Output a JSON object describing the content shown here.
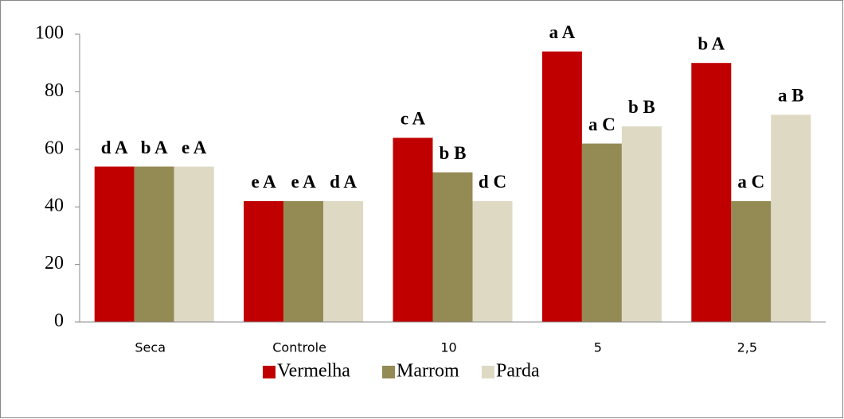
{
  "chart_data": {
    "type": "bar",
    "categories": [
      "Seca",
      "Controle",
      "10",
      "5",
      "2,5"
    ],
    "series": [
      {
        "name": "Vermelha",
        "color": "#c00000",
        "values": [
          54,
          42,
          64,
          94,
          90
        ],
        "letters": [
          "d A",
          "e A",
          "c A",
          "a A",
          "b A"
        ]
      },
      {
        "name": "Marrom",
        "color": "#948a54",
        "values": [
          54,
          42,
          52,
          62,
          42
        ],
        "letters": [
          "b A",
          "e A",
          "b B",
          "a C",
          "a C"
        ]
      },
      {
        "name": "Parda",
        "color": "#ddd9c3",
        "values": [
          54,
          42,
          42,
          68,
          72
        ],
        "letters": [
          "e A",
          "d A",
          "d C",
          "b B",
          "a B"
        ]
      }
    ],
    "ylim": [
      0,
      100
    ],
    "yticks": [
      0,
      20,
      40,
      60,
      80,
      100
    ],
    "grid": false,
    "legend": "bottom"
  }
}
